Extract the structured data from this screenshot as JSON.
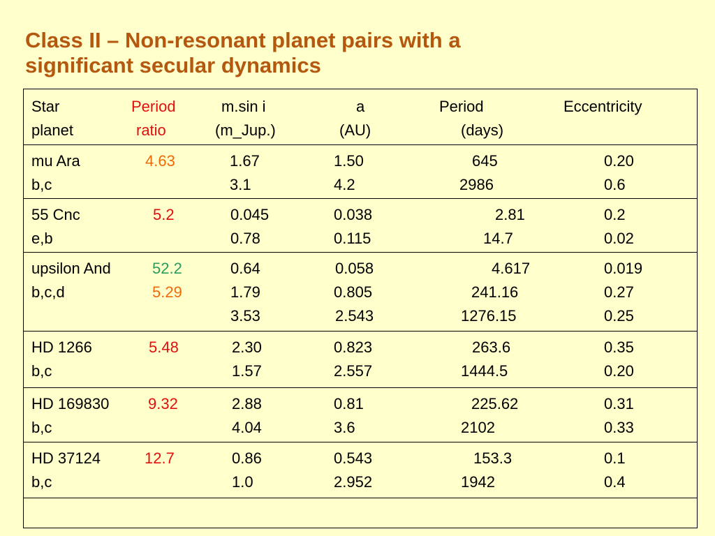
{
  "title_line1": "Class II – Non-resonant planet pairs with a",
  "title_line2": "significant secular dynamics",
  "colors": {
    "title": "#b5580f",
    "red": "#e11010",
    "orange": "#ef6a0a",
    "green": "#2a9d5e"
  },
  "header": {
    "star": "Star",
    "planet": "planet",
    "period": "Period",
    "ratio": "ratio",
    "msini": "m.sin i",
    "mjup": "(m_Jup.)",
    "a": "a",
    "au": "(AU)",
    "period2": "Period",
    "days": "(days)",
    "ecc": "Eccentricity"
  },
  "rows": [
    {
      "star": "mu Ara",
      "planets": "b,c",
      "ratio": "4.63",
      "ratio2": "",
      "m": [
        "1.67",
        "3.1"
      ],
      "a": [
        "1.50",
        "4.2"
      ],
      "p": [
        "645",
        "2986"
      ],
      "e": [
        "0.20",
        "0.6"
      ]
    },
    {
      "star": "55 Cnc",
      "planets": "e,b",
      "ratio": "5.2",
      "ratio2": "",
      "m": [
        "0.045",
        "0.78"
      ],
      "a": [
        "0.038",
        "0.115"
      ],
      "p": [
        "2.81",
        "14.7"
      ],
      "e": [
        "0.2",
        "0.02"
      ]
    },
    {
      "star": "upsilon And",
      "planets": "b,c,d",
      "ratio": "52.2",
      "ratio2": "5.29",
      "m": [
        "0.64",
        "1.79",
        "3.53"
      ],
      "a": [
        "0.058",
        "0.805",
        "2.543"
      ],
      "p": [
        "4.617",
        "241.16",
        "1276.15"
      ],
      "e": [
        "0.019",
        "0.27",
        "0.25"
      ]
    },
    {
      "star": "HD 1266",
      "planets": "b,c",
      "ratio": "5.48",
      "ratio2": "",
      "m": [
        "2.30",
        "1.57"
      ],
      "a": [
        "0.823",
        "2.557"
      ],
      "p": [
        "263.6",
        "1444.5"
      ],
      "e": [
        "0.35",
        "0.20"
      ]
    },
    {
      "star": "HD 169830",
      "planets": "b,c",
      "ratio": "9.32",
      "ratio2": "",
      "m": [
        "2.88",
        "4.04"
      ],
      "a": [
        "0.81",
        "3.6"
      ],
      "p": [
        "225.62",
        "2102"
      ],
      "e": [
        "0.31",
        "0.33"
      ]
    },
    {
      "star": "HD 37124",
      "planets": "b,c",
      "ratio": "12.7",
      "ratio2": "",
      "m": [
        "0.86",
        "1.0"
      ],
      "a": [
        "0.543",
        "2.952"
      ],
      "p": [
        "153.3",
        "1942"
      ],
      "e": [
        "0.1",
        "0.4"
      ]
    }
  ]
}
